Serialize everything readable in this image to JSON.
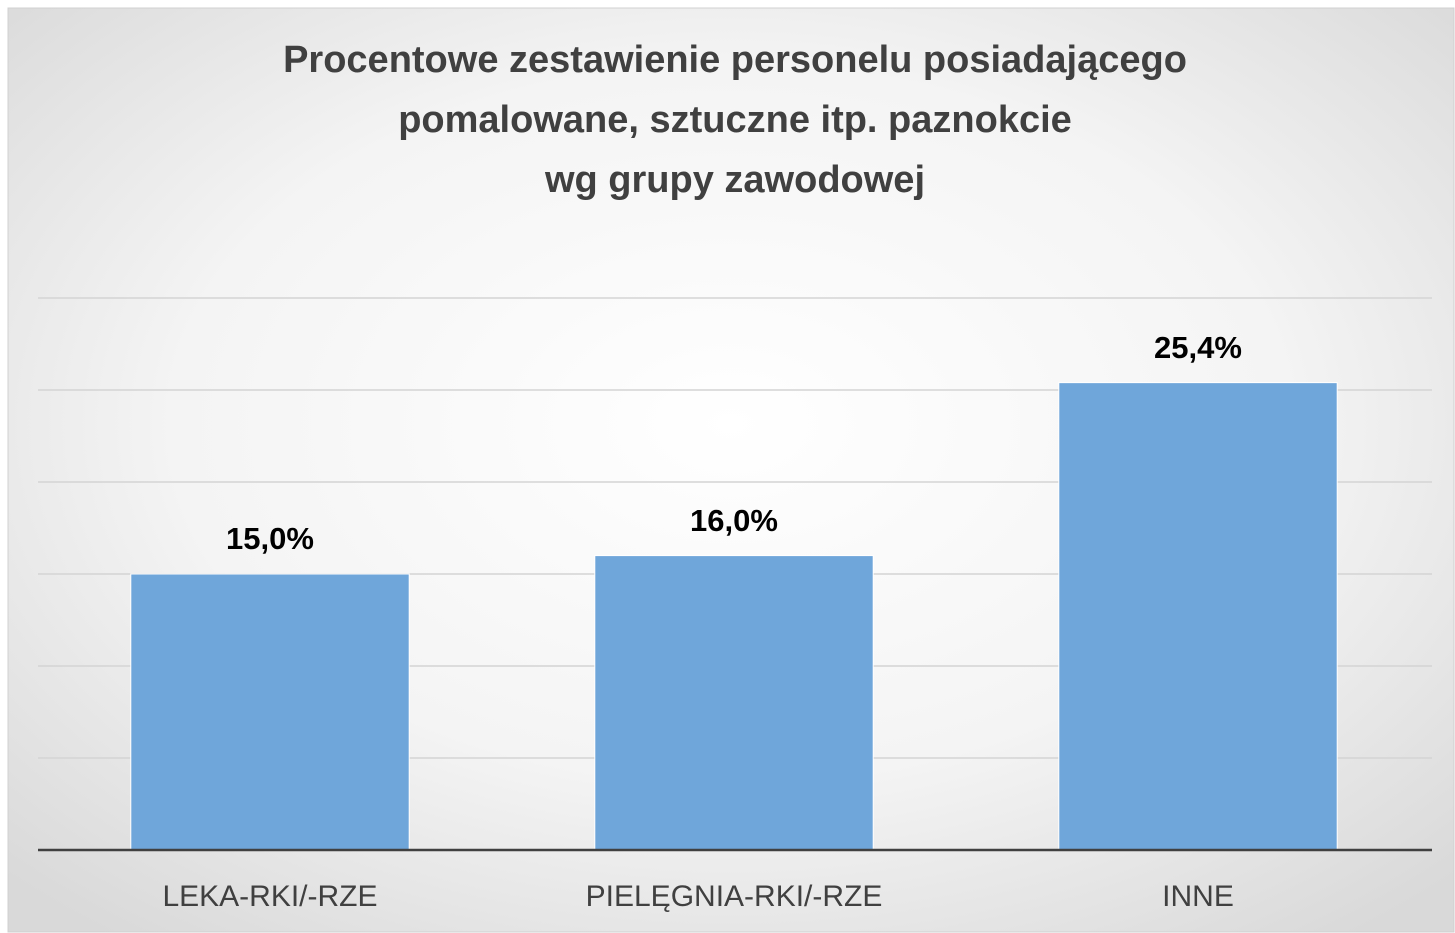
{
  "chart_data": {
    "type": "bar",
    "title": [
      "Procentowe zestawienie personelu posiadającego",
      "pomalowane, sztuczne itp. paznokcie",
      "wg grupy zawodowej"
    ],
    "categories": [
      "LEKA-RKI/-RZE",
      "PIELĘGNIA-RKI/-RZE",
      "INNE"
    ],
    "values": [
      15.0,
      16.0,
      25.4
    ],
    "value_labels": [
      "15,0%",
      "16,0%",
      "25,4%"
    ],
    "color": "#6fa6da",
    "ylim": [
      0,
      30
    ],
    "yticks": [
      0,
      5,
      10,
      15,
      20,
      25,
      30
    ],
    "grid": true
  }
}
